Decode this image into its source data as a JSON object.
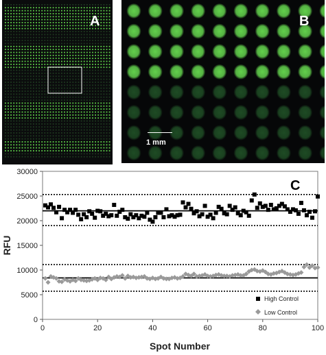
{
  "panels": {
    "a": {
      "letter": "A",
      "bright_color": "#5fd24a",
      "dim_color": "#1f3a20",
      "bright_bands": [
        [
          1,
          8
        ],
        [
          14,
          21
        ],
        [
          33,
          38
        ],
        [
          46,
          49
        ]
      ]
    },
    "b": {
      "letter": "B",
      "scale_label": "1 mm",
      "bright_color": "#62cf4c",
      "dim_color": "#1e4b24",
      "columns": 10,
      "rows": 8,
      "bright_rows": 4
    }
  },
  "chart_data": {
    "type": "scatter",
    "panel_label": "C",
    "xlabel": "Spot Number",
    "ylabel": "RFU",
    "xlim": [
      0,
      100
    ],
    "ylim": [
      0,
      30000
    ],
    "xticks": [
      0,
      20,
      40,
      60,
      80,
      100
    ],
    "yticks": [
      0,
      5000,
      10000,
      15000,
      20000,
      25000,
      30000
    ],
    "legend_position": "bottom-right",
    "series": [
      {
        "name": "High Control",
        "marker": "square",
        "color": "#000000",
        "x": [
          1,
          2,
          3,
          4,
          5,
          6,
          7,
          8,
          9,
          10,
          11,
          12,
          13,
          14,
          15,
          16,
          17,
          18,
          19,
          20,
          21,
          22,
          23,
          24,
          25,
          26,
          27,
          28,
          29,
          30,
          31,
          32,
          33,
          34,
          35,
          36,
          37,
          38,
          39,
          40,
          41,
          42,
          43,
          44,
          45,
          46,
          47,
          48,
          49,
          50,
          51,
          52,
          53,
          54,
          55,
          56,
          57,
          58,
          59,
          60,
          61,
          62,
          63,
          64,
          65,
          66,
          67,
          68,
          69,
          70,
          71,
          72,
          73,
          74,
          75,
          76,
          77,
          78,
          79,
          80,
          81,
          82,
          83,
          84,
          85,
          86,
          87,
          88,
          89,
          90,
          91,
          92,
          93,
          94,
          95,
          96,
          97,
          98,
          99,
          100
        ],
        "values": [
          23100,
          22700,
          23300,
          22600,
          21700,
          22800,
          20500,
          22200,
          21700,
          22200,
          21600,
          22200,
          21200,
          20300,
          21300,
          20700,
          21900,
          21400,
          20600,
          22000,
          21900,
          21000,
          21400,
          20900,
          21100,
          23200,
          21000,
          21800,
          22200,
          20700,
          20400,
          21300,
          20700,
          21100,
          20500,
          21000,
          20800,
          21600,
          20200,
          19800,
          20700,
          21600,
          21600,
          20700,
          22300,
          20900,
          21100,
          20800,
          21100,
          21200,
          23700,
          22700,
          23400,
          22400,
          21500,
          21900,
          20900,
          21300,
          23000,
          20800,
          21200,
          20500,
          21600,
          22800,
          22400,
          21500,
          21300,
          23000,
          22200,
          22700,
          21500,
          21100,
          22000,
          21700,
          21000,
          24100,
          25300,
          22600,
          23500,
          22800,
          23000,
          22200,
          23200,
          22300,
          22500,
          23000,
          23400,
          22900,
          22300,
          21800,
          22300,
          22100,
          21400,
          23600,
          22100,
          21100,
          21800,
          20600,
          21900,
          24900
        ]
      },
      {
        "name": "Low Control",
        "marker": "diamond",
        "color": "#9a9a9a",
        "x": [
          1,
          2,
          3,
          4,
          5,
          6,
          7,
          8,
          9,
          10,
          11,
          12,
          13,
          14,
          15,
          16,
          17,
          18,
          19,
          20,
          21,
          22,
          23,
          24,
          25,
          26,
          27,
          28,
          29,
          30,
          31,
          32,
          33,
          34,
          35,
          36,
          37,
          38,
          39,
          40,
          41,
          42,
          43,
          44,
          45,
          46,
          47,
          48,
          49,
          50,
          51,
          52,
          53,
          54,
          55,
          56,
          57,
          58,
          59,
          60,
          61,
          62,
          63,
          64,
          65,
          66,
          67,
          68,
          69,
          70,
          71,
          72,
          73,
          74,
          75,
          76,
          77,
          78,
          79,
          80,
          81,
          82,
          83,
          84,
          85,
          86,
          87,
          88,
          89,
          90,
          91,
          92,
          93,
          94,
          95,
          96,
          97,
          98,
          99,
          100
        ],
        "values": [
          8300,
          7500,
          8700,
          8500,
          8300,
          7700,
          7600,
          8100,
          7900,
          7700,
          8000,
          7800,
          8300,
          8000,
          7900,
          7800,
          7900,
          8100,
          8300,
          8000,
          8400,
          8300,
          8000,
          8600,
          8200,
          8500,
          8700,
          8600,
          8900,
          8300,
          8800,
          8500,
          8600,
          8400,
          8500,
          8600,
          8700,
          8300,
          8200,
          8400,
          8200,
          8300,
          8600,
          8300,
          8200,
          8200,
          8400,
          8500,
          8300,
          8400,
          8700,
          9200,
          9000,
          8800,
          9200,
          8700,
          8800,
          8900,
          9100,
          8800,
          8700,
          8800,
          9000,
          9100,
          8900,
          8800,
          8800,
          8700,
          8900,
          9000,
          9100,
          8900,
          8900,
          9200,
          9700,
          10000,
          10100,
          9800,
          9700,
          9900,
          9600,
          9200,
          9100,
          9300,
          9400,
          9600,
          9800,
          9500,
          9200,
          9100,
          9000,
          9100,
          9300,
          9500,
          10600,
          11100,
          10500,
          10900,
          10400,
          10500
        ]
      }
    ],
    "reference_lines": [
      {
        "y": 22000,
        "style": "solid"
      },
      {
        "y": 25300,
        "style": "dotted"
      },
      {
        "y": 19000,
        "style": "dotted"
      },
      {
        "y": 8400,
        "style": "solid"
      },
      {
        "y": 11100,
        "style": "dotted"
      },
      {
        "y": 5700,
        "style": "dotted"
      }
    ]
  }
}
